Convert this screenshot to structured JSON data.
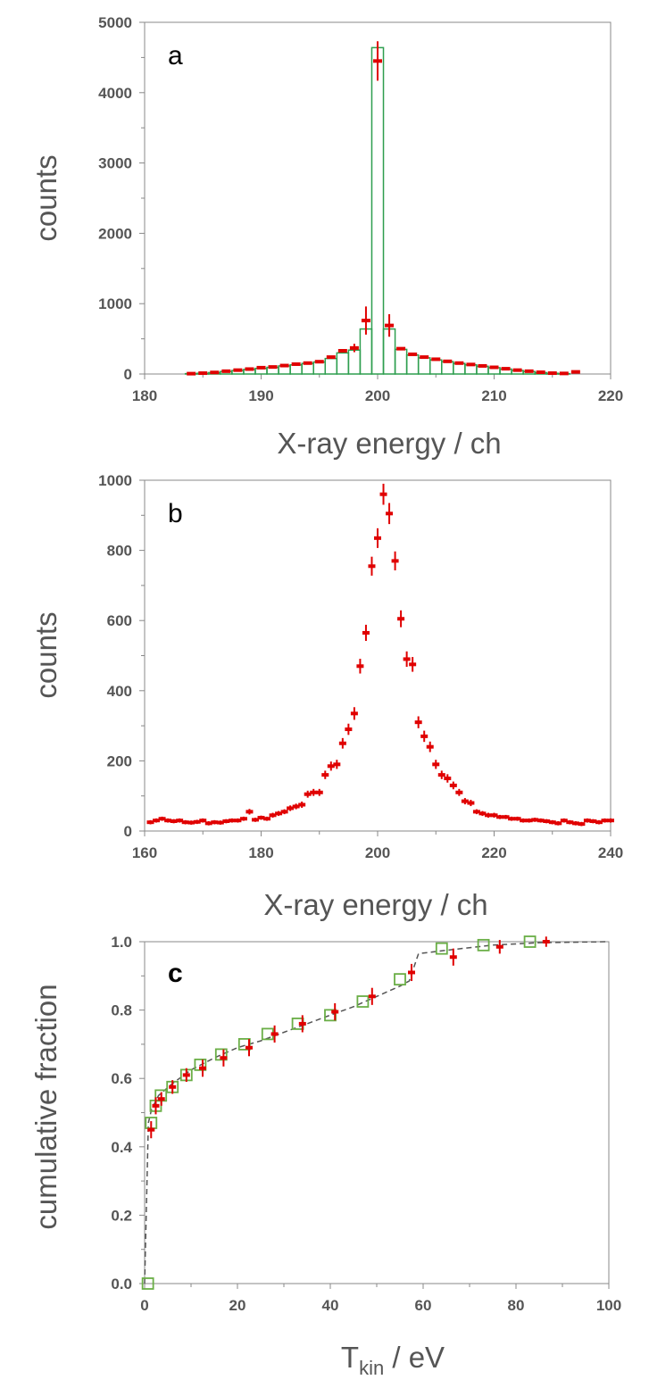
{
  "chart_data": [
    {
      "type": "bar",
      "panel": "a",
      "xlabel": "X-ray energy  / ch",
      "ylabel": "counts",
      "xlim": [
        180,
        220
      ],
      "ylim": [
        0,
        5000
      ],
      "xticks": [
        "180",
        "190",
        "200",
        "210",
        "220"
      ],
      "yticks": [
        "0",
        "1000",
        "2000",
        "3000",
        "4000",
        "5000"
      ],
      "colors": {
        "model": "#2e9e4f",
        "measured": "#e00000"
      },
      "series": [
        {
          "name": "model histogram",
          "x": [
            184,
            185,
            186,
            187,
            188,
            189,
            190,
            191,
            192,
            193,
            194,
            195,
            196,
            197,
            198,
            199,
            200,
            201,
            202,
            203,
            204,
            205,
            206,
            207,
            208,
            209,
            210,
            211,
            212,
            213,
            214,
            215,
            216
          ],
          "values": [
            5,
            10,
            20,
            35,
            50,
            65,
            80,
            95,
            115,
            130,
            150,
            170,
            220,
            300,
            340,
            640,
            4640,
            640,
            350,
            270,
            230,
            200,
            175,
            150,
            130,
            110,
            90,
            70,
            50,
            35,
            20,
            10,
            5
          ]
        },
        {
          "name": "measured",
          "x": [
            184,
            185,
            186,
            187,
            188,
            189,
            190,
            191,
            192,
            193,
            194,
            195,
            196,
            197,
            198,
            199,
            200,
            201,
            202,
            203,
            204,
            205,
            206,
            207,
            208,
            209,
            210,
            211,
            212,
            213,
            214,
            215,
            216,
            217
          ],
          "values": [
            5,
            12,
            22,
            40,
            55,
            70,
            90,
            100,
            120,
            140,
            155,
            175,
            240,
            330,
            370,
            760,
            4450,
            690,
            360,
            280,
            240,
            210,
            180,
            155,
            135,
            115,
            95,
            75,
            55,
            40,
            25,
            12,
            8,
            30
          ],
          "errors": [
            10,
            10,
            10,
            10,
            10,
            10,
            12,
            12,
            14,
            15,
            16,
            17,
            20,
            25,
            60,
            200,
            280,
            160,
            20,
            18,
            16,
            15,
            14,
            13,
            12,
            12,
            10,
            10,
            10,
            10,
            10,
            10,
            10,
            10
          ]
        }
      ]
    },
    {
      "type": "scatter",
      "panel": "b",
      "xlabel": "X-ray energy  / ch",
      "ylabel": "counts",
      "xlim": [
        160,
        240
      ],
      "ylim": [
        0,
        1000
      ],
      "xticks": [
        "160",
        "180",
        "200",
        "220",
        "240"
      ],
      "yticks": [
        "0",
        "200",
        "400",
        "600",
        "800",
        "1000"
      ],
      "colors": {
        "measured": "#e00000"
      },
      "series": [
        {
          "name": "measured",
          "x": [
            161,
            162,
            163,
            164,
            165,
            166,
            167,
            168,
            169,
            170,
            171,
            172,
            173,
            174,
            175,
            176,
            177,
            178,
            179,
            180,
            181,
            182,
            183,
            184,
            185,
            186,
            187,
            188,
            189,
            190,
            191,
            192,
            193,
            194,
            195,
            196,
            197,
            198,
            199,
            200,
            201,
            202,
            203,
            204,
            205,
            206,
            207,
            208,
            209,
            210,
            211,
            212,
            213,
            214,
            215,
            216,
            217,
            218,
            219,
            220,
            221,
            222,
            223,
            224,
            225,
            226,
            227,
            228,
            229,
            230,
            231,
            232,
            233,
            234,
            235,
            236,
            237,
            238,
            239,
            240
          ],
          "values": [
            25,
            30,
            35,
            30,
            28,
            30,
            25,
            24,
            26,
            30,
            22,
            25,
            24,
            28,
            30,
            30,
            35,
            55,
            32,
            38,
            35,
            45,
            50,
            55,
            65,
            70,
            75,
            105,
            110,
            110,
            160,
            185,
            190,
            250,
            290,
            335,
            470,
            565,
            755,
            835,
            960,
            905,
            770,
            605,
            490,
            475,
            310,
            270,
            240,
            190,
            160,
            150,
            130,
            110,
            85,
            80,
            55,
            50,
            45,
            45,
            40,
            40,
            35,
            35,
            30,
            30,
            32,
            30,
            28,
            25,
            22,
            30,
            25,
            22,
            20,
            30,
            28,
            25,
            30,
            30
          ],
          "errors": [
            6,
            6,
            6,
            6,
            6,
            6,
            6,
            6,
            6,
            6,
            6,
            6,
            6,
            6,
            6,
            6,
            6,
            8,
            6,
            6,
            6,
            7,
            7,
            7,
            8,
            8,
            9,
            10,
            10,
            10,
            12,
            13,
            13,
            15,
            16,
            18,
            21,
            23,
            27,
            28,
            30,
            30,
            27,
            24,
            22,
            21,
            17,
            16,
            15,
            13,
            12,
            12,
            11,
            10,
            9,
            9,
            7,
            7,
            7,
            7,
            6,
            6,
            6,
            6,
            6,
            6,
            6,
            6,
            6,
            6,
            6,
            6,
            6,
            6,
            6,
            6,
            6,
            6,
            6,
            6
          ]
        }
      ]
    },
    {
      "type": "line",
      "panel": "c",
      "xlabel_main": "T",
      "xlabel_sub": "kin",
      "xlabel_unit": " / eV",
      "ylabel": "cumulative fraction",
      "xlim": [
        0,
        100
      ],
      "ylim": [
        0,
        1.0
      ],
      "xticks": [
        "0",
        "20",
        "40",
        "60",
        "80",
        "100"
      ],
      "yticks": [
        "0.0",
        "0.2",
        "0.4",
        "0.6",
        "0.8",
        "1.0"
      ],
      "colors": {
        "model": "#6aae46",
        "measured": "#e00000",
        "curve": "#555555"
      },
      "series": [
        {
          "name": "model (squares)",
          "x": [
            0.7,
            1.4,
            2.4,
            3.5,
            6,
            9,
            12,
            16.5,
            21.5,
            26.5,
            33,
            40,
            47,
            55,
            64,
            73,
            83
          ],
          "values": [
            0.0,
            0.47,
            0.52,
            0.55,
            0.575,
            0.61,
            0.64,
            0.67,
            0.7,
            0.73,
            0.76,
            0.785,
            0.825,
            0.89,
            0.98,
            0.99,
            1.0
          ]
        },
        {
          "name": "measured",
          "x": [
            1.4,
            2.4,
            3.6,
            6,
            9,
            12.5,
            17,
            22.5,
            28,
            34,
            41,
            49,
            57.5,
            66.5,
            76.5,
            86.5
          ],
          "values": [
            0.45,
            0.52,
            0.54,
            0.575,
            0.61,
            0.63,
            0.66,
            0.69,
            0.73,
            0.76,
            0.795,
            0.84,
            0.91,
            0.955,
            0.985,
            1.0
          ],
          "errors": [
            0.025,
            0.025,
            0.02,
            0.02,
            0.02,
            0.025,
            0.025,
            0.025,
            0.025,
            0.025,
            0.025,
            0.025,
            0.025,
            0.025,
            0.02,
            0.015
          ]
        },
        {
          "name": "dashed curve",
          "x": [
            0,
            0.8,
            1.5,
            3,
            6,
            10,
            15,
            20,
            25,
            30,
            35,
            40,
            45,
            50,
            55,
            57,
            59,
            65,
            75,
            85,
            100
          ],
          "values": [
            0.0,
            0.47,
            0.51,
            0.55,
            0.585,
            0.625,
            0.66,
            0.69,
            0.71,
            0.735,
            0.76,
            0.785,
            0.81,
            0.84,
            0.87,
            0.885,
            0.965,
            0.975,
            0.99,
            0.997,
            1.0
          ]
        }
      ]
    }
  ]
}
